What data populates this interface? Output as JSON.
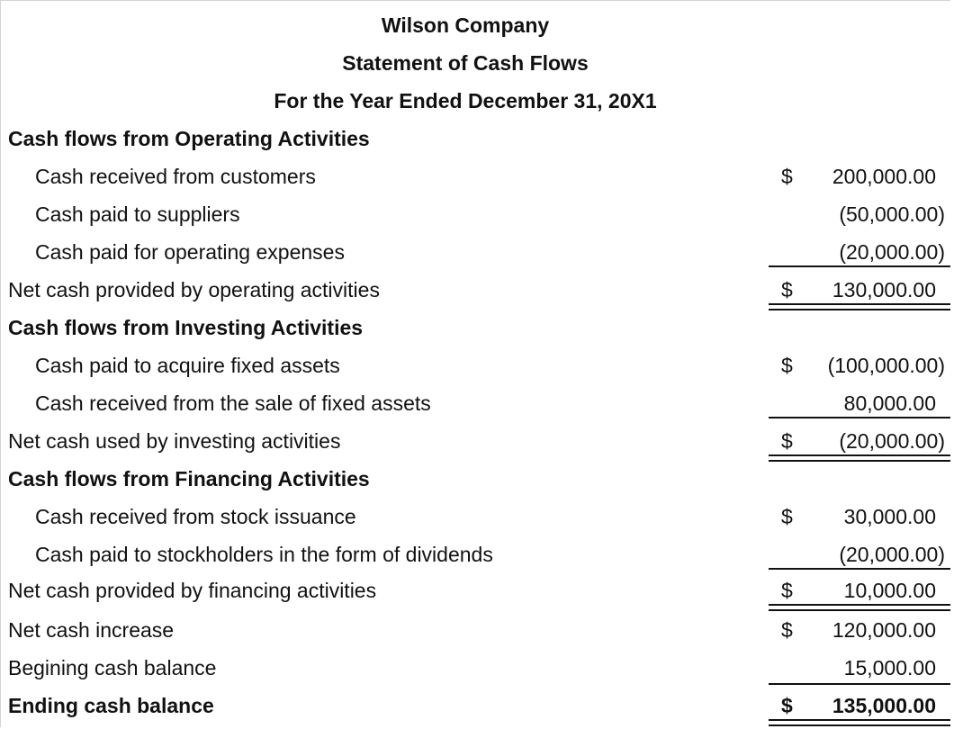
{
  "header": {
    "company": "Wilson Company",
    "statement": "Statement of Cash Flows",
    "period": "For the Year Ended December 31, 20X1"
  },
  "currency_symbol": "$",
  "operating": {
    "heading": "Cash flows from Operating Activities",
    "items": [
      {
        "label": "Cash received from customers",
        "value": "200,000.00"
      },
      {
        "label": "Cash paid to suppliers",
        "value": "(50,000.00)"
      },
      {
        "label": "Cash paid for operating expenses",
        "value": "(20,000.00)"
      }
    ],
    "net_label": "Net cash provided by operating activities",
    "net_value": "130,000.00"
  },
  "investing": {
    "heading": "Cash flows from Investing Activities",
    "items": [
      {
        "label": "Cash paid to acquire fixed assets",
        "value": "(100,000.00)"
      },
      {
        "label": "Cash received from the sale of fixed assets",
        "value": "80,000.00"
      }
    ],
    "net_label": "Net cash used by investing activities",
    "net_value": "(20,000.00)"
  },
  "financing": {
    "heading": "Cash flows from Financing Activities",
    "items": [
      {
        "label": "Cash received from stock issuance",
        "value": "30,000.00"
      },
      {
        "label": "Cash paid to stockholders in the form of dividends",
        "value": "(20,000.00)"
      }
    ],
    "net_label": "Net cash provided by financing activities",
    "net_value": "10,000.00"
  },
  "summary": {
    "increase_label": "Net cash increase",
    "increase_value": "120,000.00",
    "beginning_label": "Begining cash balance",
    "beginning_value": "15,000.00",
    "ending_label": "Ending cash balance",
    "ending_value": "135,000.00"
  }
}
